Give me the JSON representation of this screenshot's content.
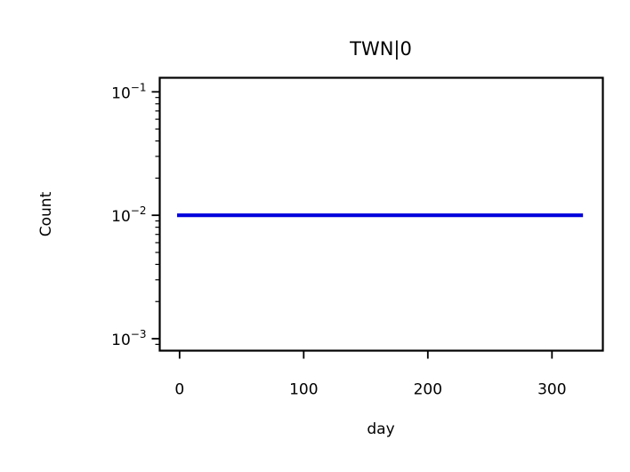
{
  "chart_data": {
    "type": "line",
    "title": "TWN|0",
    "xlabel": "day",
    "ylabel": "Count",
    "y_scale": "log",
    "xlim": [
      -16,
      341
    ],
    "ylim": [
      0.0008,
      0.13
    ],
    "x_ticks": [
      {
        "value": 0,
        "label": "0"
      },
      {
        "value": 100,
        "label": "100"
      },
      {
        "value": 200,
        "label": "200"
      },
      {
        "value": 300,
        "label": "300"
      }
    ],
    "y_ticks": [
      {
        "value": 0.001,
        "base": "10",
        "exp": "−3"
      },
      {
        "value": 0.01,
        "base": "10",
        "exp": "−2"
      },
      {
        "value": 0.1,
        "base": "10",
        "exp": "−1"
      }
    ],
    "grid": false,
    "series": [
      {
        "color": "#0000dd",
        "x": [
          -2,
          325
        ],
        "y": [
          0.01,
          0.01
        ]
      }
    ]
  }
}
